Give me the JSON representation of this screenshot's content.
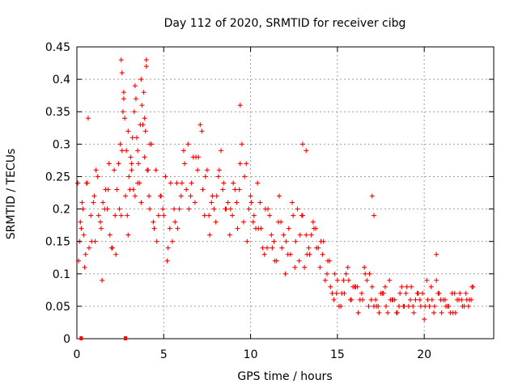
{
  "chart_data": {
    "type": "scatter",
    "title": "Day 112 of 2020, SRMTID for receiver cibg",
    "xlabel": "GPS time / hours",
    "ylabel": "SRMTID / TECUs",
    "xlim": [
      0,
      24
    ],
    "ylim": [
      0,
      0.45
    ],
    "xticks": [
      "0",
      "5",
      "10",
      "15",
      "20"
    ],
    "yticks": [
      "0",
      "0.05",
      "0.1",
      "0.15",
      "0.2",
      "0.25",
      "0.3",
      "0.35",
      "0.4",
      "0.45"
    ],
    "grid": true,
    "marker": "+",
    "color": "#ff0000",
    "series": [
      {
        "name": "SRMTID",
        "x": [
          0.1,
          0.2,
          0.3,
          0.4,
          0.5,
          0.6,
          0.8,
          1.0,
          1.2,
          1.4,
          1.6,
          1.8,
          2.0,
          2.2,
          2.4,
          2.5,
          2.6,
          2.7,
          2.8,
          2.9,
          3.0,
          3.1,
          3.2,
          3.3,
          3.4,
          3.5,
          3.6,
          3.7,
          3.8,
          3.9,
          4.0,
          4.1,
          4.2,
          4.4,
          4.6,
          4.8,
          5.0,
          5.2,
          5.4,
          5.6,
          5.8,
          6.0,
          6.2,
          6.4,
          6.6,
          6.8,
          7.0,
          7.2,
          7.4,
          7.6,
          7.8,
          8.0,
          8.2,
          8.4,
          8.6,
          8.8,
          9.0,
          9.2,
          9.4,
          9.6,
          9.8,
          10.0,
          10.2,
          10.4,
          10.6,
          10.8,
          11.0,
          11.2,
          11.4,
          11.6,
          11.8,
          12.0,
          12.2,
          12.4,
          12.6,
          12.8,
          13.0,
          13.2,
          13.4,
          13.6,
          13.8,
          14.0,
          14.2,
          14.4,
          14.6,
          14.8,
          15.0,
          15.2,
          15.4,
          15.6,
          15.8,
          16.0,
          16.2,
          16.4,
          16.6,
          16.8,
          17.0,
          17.2,
          17.4,
          17.6,
          17.8,
          18.0,
          18.2,
          18.4,
          18.6,
          18.8,
          19.0,
          19.2,
          19.4,
          19.6,
          19.8,
          20.0,
          20.2,
          20.4,
          20.6,
          20.8,
          21.0,
          21.2,
          21.4,
          21.6,
          21.8,
          22.0,
          22.2,
          22.4,
          22.6,
          22.8,
          0.15,
          0.35,
          0.7,
          1.1,
          1.5,
          1.9,
          2.3,
          2.6,
          2.75,
          3.15,
          3.35,
          3.75,
          3.85,
          4.3,
          4.7,
          5.1,
          5.5,
          5.9,
          6.3,
          6.7,
          7.1,
          7.5,
          7.9,
          8.3,
          8.7,
          9.1,
          9.5,
          9.9,
          10.3,
          10.7,
          11.1,
          11.5,
          11.9,
          12.3,
          12.7,
          13.1,
          13.5,
          13.9,
          14.3,
          14.7,
          15.1,
          15.5,
          15.9,
          16.3,
          16.7,
          17.1,
          17.5,
          17.9,
          18.3,
          18.7,
          19.1,
          19.5,
          19.9,
          20.3,
          20.7,
          21.1,
          21.5,
          21.9,
          22.3,
          22.7,
          0.25,
          0.55,
          0.95,
          1.35,
          1.75,
          2.15,
          2.55,
          2.95,
          3.25,
          3.55,
          3.95,
          4.15,
          4.55,
          4.95,
          5.35,
          5.75,
          6.15,
          6.55,
          6.95,
          7.35,
          7.75,
          8.15,
          8.55,
          8.95,
          9.35,
          9.75,
          10.15,
          10.55,
          10.95,
          11.35,
          11.75,
          12.15,
          12.55,
          12.95,
          13.35,
          13.75,
          14.15,
          14.55,
          14.95,
          15.35,
          15.75,
          16.15,
          16.55,
          16.95,
          17.35,
          17.75,
          18.15,
          18.55,
          18.95,
          19.35,
          19.75,
          20.15,
          20.55,
          20.95,
          21.35,
          21.75,
          22.15,
          22.55,
          0.45,
          0.85,
          1.25,
          1.65,
          2.05,
          2.45,
          2.65,
          2.85,
          3.05,
          3.45,
          3.65,
          4.05,
          4.45,
          4.85,
          5.25,
          5.65,
          6.05,
          6.45,
          6.85,
          7.25,
          7.65,
          8.05,
          8.45,
          8.85,
          9.25,
          9.65,
          10.05,
          10.45,
          10.85,
          11.25,
          11.65,
          12.05,
          12.45,
          12.85,
          13.25,
          13.65,
          14.05,
          14.45,
          14.85,
          15.25,
          15.65,
          16.05,
          16.45,
          16.85,
          17.25,
          17.65,
          18.05,
          18.45,
          18.85,
          19.25,
          19.65,
          20.05,
          20.45,
          20.85,
          21.25,
          21.65,
          22.05,
          22.45,
          22.75,
          0.05,
          0.65,
          1.05,
          1.45,
          1.85,
          2.25,
          2.55,
          2.7,
          2.95,
          3.15,
          3.35,
          3.5,
          3.7,
          3.9,
          4.0,
          4.2,
          9.4,
          13.2,
          13.0,
          17.0,
          17.1,
          20.7
        ],
        "y": [
          0.12,
          0.18,
          0.21,
          0.16,
          0.13,
          0.24,
          0.19,
          0.22,
          0.25,
          0.17,
          0.2,
          0.23,
          0.14,
          0.19,
          0.27,
          0.3,
          0.41,
          0.38,
          0.22,
          0.19,
          0.25,
          0.28,
          0.31,
          0.35,
          0.37,
          0.29,
          0.24,
          0.21,
          0.33,
          0.28,
          0.42,
          0.26,
          0.2,
          0.18,
          0.15,
          0.22,
          0.19,
          0.12,
          0.24,
          0.2,
          0.17,
          0.22,
          0.27,
          0.3,
          0.24,
          0.21,
          0.28,
          0.32,
          0.25,
          0.19,
          0.22,
          0.18,
          0.26,
          0.23,
          0.2,
          0.16,
          0.24,
          0.21,
          0.27,
          0.18,
          0.15,
          0.22,
          0.19,
          0.24,
          0.17,
          0.13,
          0.2,
          0.16,
          0.12,
          0.18,
          0.14,
          0.1,
          0.17,
          0.21,
          0.15,
          0.12,
          0.19,
          0.16,
          0.13,
          0.18,
          0.14,
          0.11,
          0.15,
          0.1,
          0.08,
          0.06,
          0.09,
          0.05,
          0.07,
          0.11,
          0.06,
          0.08,
          0.04,
          0.07,
          0.1,
          0.05,
          0.08,
          0.06,
          0.04,
          0.07,
          0.05,
          0.09,
          0.06,
          0.04,
          0.07,
          0.05,
          0.08,
          0.06,
          0.04,
          0.07,
          0.05,
          0.03,
          0.06,
          0.08,
          0.05,
          0.07,
          0.04,
          0.06,
          0.05,
          0.07,
          0.04,
          0.06,
          0.05,
          0.07,
          0.06,
          0.08,
          0.15,
          0.2,
          0.14,
          0.26,
          0.21,
          0.16,
          0.23,
          0.29,
          0.34,
          0.27,
          0.22,
          0.36,
          0.38,
          0.3,
          0.19,
          0.25,
          0.15,
          0.2,
          0.23,
          0.28,
          0.33,
          0.26,
          0.2,
          0.29,
          0.21,
          0.23,
          0.3,
          0.2,
          0.17,
          0.14,
          0.19,
          0.12,
          0.16,
          0.13,
          0.2,
          0.11,
          0.16,
          0.14,
          0.09,
          0.07,
          0.05,
          0.1,
          0.08,
          0.06,
          0.09,
          0.05,
          0.07,
          0.04,
          0.06,
          0.08,
          0.05,
          0.06,
          0.07,
          0.05,
          0.09,
          0.06,
          0.04,
          0.06,
          0.05,
          0.06,
          0.17,
          0.24,
          0.21,
          0.18,
          0.2,
          0.26,
          0.19,
          0.16,
          0.23,
          0.27,
          0.32,
          0.22,
          0.26,
          0.2,
          0.17,
          0.24,
          0.29,
          0.22,
          0.26,
          0.19,
          0.21,
          0.25,
          0.2,
          0.19,
          0.23,
          0.27,
          0.18,
          0.21,
          0.14,
          0.15,
          0.18,
          0.13,
          0.11,
          0.19,
          0.14,
          0.17,
          0.13,
          0.12,
          0.07,
          0.09,
          0.06,
          0.08,
          0.11,
          0.06,
          0.05,
          0.08,
          0.06,
          0.05,
          0.07,
          0.05,
          0.06,
          0.09,
          0.04,
          0.06,
          0.05,
          0.07,
          0.06,
          0.05,
          0.11,
          0.15,
          0.19,
          0.23,
          0.14,
          0.2,
          0.35,
          0.29,
          0.23,
          0.31,
          0.33,
          0.26,
          0.17,
          0.22,
          0.14,
          0.18,
          0.24,
          0.2,
          0.28,
          0.23,
          0.16,
          0.22,
          0.24,
          0.2,
          0.17,
          0.25,
          0.21,
          0.17,
          0.2,
          0.14,
          0.22,
          0.15,
          0.19,
          0.16,
          0.13,
          0.17,
          0.15,
          0.12,
          0.1,
          0.07,
          0.09,
          0.08,
          0.06,
          0.1,
          0.05,
          0.07,
          0.06,
          0.04,
          0.05,
          0.08,
          0.07,
          0.05,
          0.06,
          0.07,
          0.05,
          0.04,
          0.07,
          0.06,
          0.08,
          0.24,
          0.34,
          0.15,
          0.09,
          0.27,
          0.13,
          0.43,
          0.37,
          0.32,
          0.26,
          0.39,
          0.24,
          0.4,
          0.34,
          0.43,
          0.3,
          0.36,
          0.29,
          0.3,
          0.22,
          0.19,
          0.13
        ]
      }
    ]
  }
}
